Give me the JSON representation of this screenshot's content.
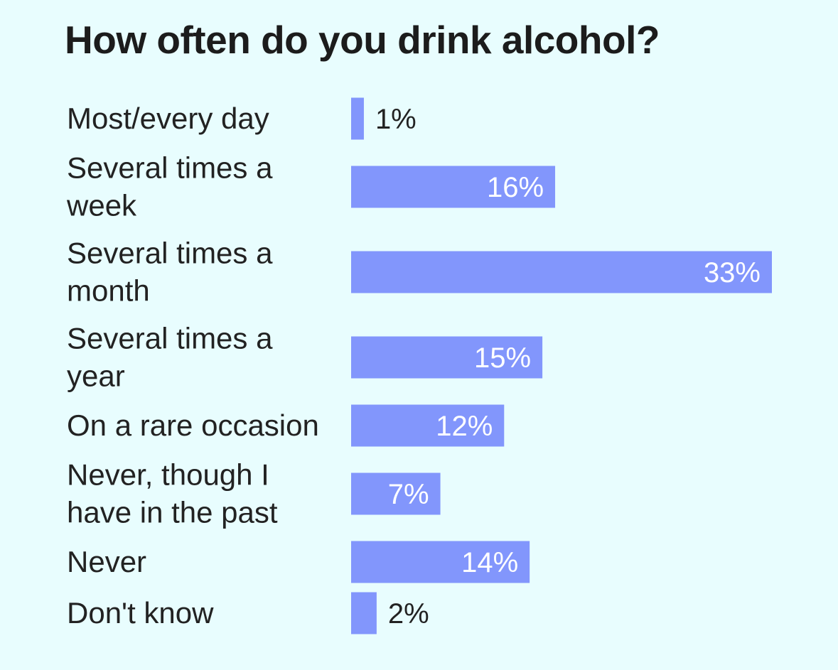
{
  "colors": {
    "background": "#e8fdfe",
    "bar": "#8296fc",
    "label_text": "#222222",
    "value_inside": "#ffffff",
    "value_outside": "#222222"
  },
  "chart_data": {
    "type": "bar",
    "orientation": "horizontal",
    "title": "How often do you drink alcohol?",
    "xlabel": "",
    "ylabel": "",
    "grid": false,
    "legend": "none",
    "categories": [
      "Most/every day",
      "Several times a week",
      "Several times a month",
      "Several times a year",
      "On a rare occasion",
      "Never, though I have in the past",
      "Never",
      "Don't know"
    ],
    "values": [
      1,
      16,
      33,
      15,
      12,
      7,
      14,
      2
    ],
    "value_labels": [
      "1%",
      "16%",
      "33%",
      "15%",
      "12%",
      "7%",
      "14%",
      "2%"
    ],
    "xlim": [
      0,
      33
    ]
  }
}
